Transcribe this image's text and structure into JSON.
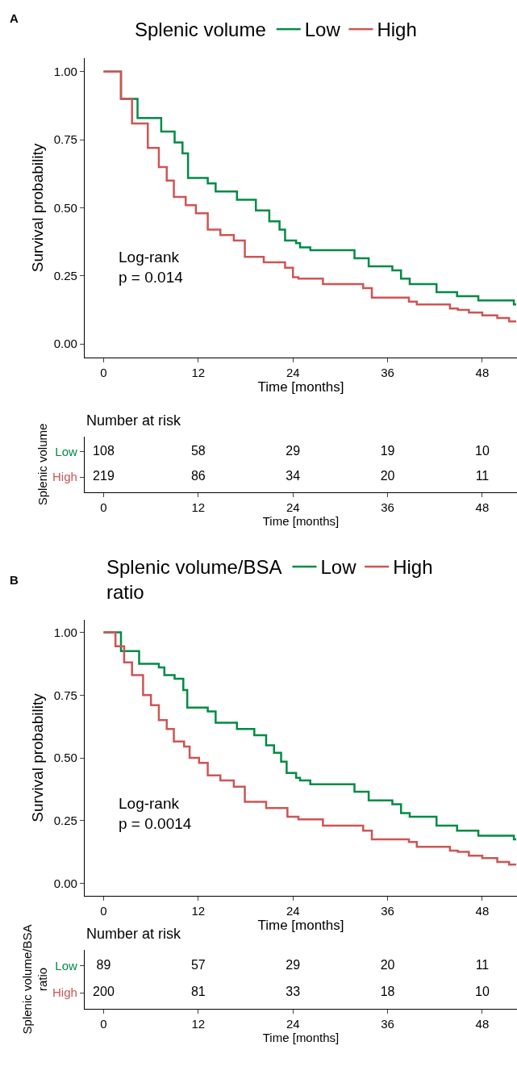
{
  "chart_data": [
    {
      "type": "step",
      "title": "A",
      "xlabel": "Time [months]",
      "ylabel": "Survival probability",
      "legend_title": "Splenic volume",
      "legend": "top",
      "line_style": "solid",
      "xlim": [
        -2.4,
        52.4
      ],
      "xticks": [
        0,
        12,
        24,
        36,
        48
      ],
      "ylim": [
        -0.05,
        1.05
      ],
      "yticks": [
        {
          "value": 0,
          "label": "0.00"
        },
        {
          "value": 0.25,
          "label": "0.25"
        },
        {
          "value": 0.5,
          "label": "0.50"
        },
        {
          "value": 0.75,
          "label": "0.75"
        },
        {
          "value": 1,
          "label": "1.00"
        }
      ],
      "annotations": [
        "Log-rank\np = 0.014"
      ],
      "series": [
        {
          "name": "Low",
          "color": "#008b45",
          "x": [
            0,
            2.2,
            4.3,
            7.3,
            9,
            10,
            10.7,
            13.2,
            14.2,
            16.9,
            19.3,
            21,
            22.3,
            23,
            24.4,
            24.9,
            26.2,
            31.8,
            33.6,
            36.6,
            37.7,
            38.8,
            42.2,
            44.8,
            47.5,
            52,
            52.3
          ],
          "values": [
            1.0,
            0.9,
            0.83,
            0.78,
            0.74,
            0.7,
            0.61,
            0.59,
            0.56,
            0.53,
            0.49,
            0.45,
            0.42,
            0.38,
            0.37,
            0.355,
            0.344,
            0.315,
            0.285,
            0.27,
            0.24,
            0.22,
            0.19,
            0.175,
            0.16,
            0.145,
            0.145
          ]
        },
        {
          "name": "High",
          "color": "#cd5555",
          "x": [
            0,
            2.2,
            3.6,
            5.6,
            7,
            8,
            8.9,
            10.4,
            11.7,
            13.2,
            14.8,
            16.5,
            17.9,
            20.3,
            23,
            24,
            24.7,
            27.8,
            32.9,
            34,
            38.7,
            39.7,
            43.9,
            44.9,
            46.3,
            48,
            49.9,
            51.4,
            52.3
          ],
          "values": [
            1.0,
            0.9,
            0.81,
            0.72,
            0.65,
            0.6,
            0.54,
            0.51,
            0.48,
            0.42,
            0.4,
            0.38,
            0.32,
            0.3,
            0.28,
            0.245,
            0.24,
            0.22,
            0.205,
            0.17,
            0.155,
            0.145,
            0.13,
            0.125,
            0.115,
            0.105,
            0.095,
            0.083,
            0.083
          ]
        }
      ]
    },
    {
      "type": "heatmap",
      "title": "Number at risk",
      "xlabel": "Time [months]",
      "ylabel": "Splenic volume",
      "data_labels": true,
      "xlim": [
        -2.4,
        52.4
      ],
      "xticks": [
        0,
        12,
        24,
        36,
        48
      ],
      "x": [
        0,
        12,
        24,
        36,
        48
      ],
      "y_categories": [
        "Low",
        "High"
      ],
      "colors": [
        "#008b45",
        "#cd5555"
      ],
      "cells": [
        [
          108,
          58,
          29,
          19,
          10
        ],
        [
          219,
          86,
          34,
          20,
          11
        ]
      ]
    },
    {
      "type": "step",
      "title": "B",
      "xlabel": "Time [months]",
      "ylabel": "Survival probability",
      "legend_title": "Splenic volume/BSA ratio",
      "legend": "top",
      "line_style": "solid",
      "xlim": [
        -2.4,
        52.4
      ],
      "xticks": [
        0,
        12,
        24,
        36,
        48
      ],
      "ylim": [
        -0.05,
        1.05
      ],
      "yticks": [
        {
          "value": 0,
          "label": "0.00"
        },
        {
          "value": 0.25,
          "label": "0.25"
        },
        {
          "value": 0.5,
          "label": "0.50"
        },
        {
          "value": 0.75,
          "label": "0.75"
        },
        {
          "value": 1,
          "label": "1.00"
        }
      ],
      "annotations": [
        "Log-rank\np = 0.0014"
      ],
      "series": [
        {
          "name": "Low",
          "color": "#008b45",
          "x": [
            0,
            2.2,
            4.5,
            7,
            7.7,
            9,
            10.1,
            10.6,
            13.2,
            14.2,
            16.9,
            19.1,
            20.6,
            21.6,
            22.5,
            23.2,
            24.4,
            24.9,
            26.2,
            31.8,
            33.6,
            36.6,
            37.7,
            38.8,
            42.2,
            44.8,
            47.5,
            52,
            52.3
          ],
          "values": [
            1.0,
            0.925,
            0.875,
            0.86,
            0.83,
            0.815,
            0.77,
            0.7,
            0.685,
            0.64,
            0.615,
            0.59,
            0.55,
            0.52,
            0.485,
            0.44,
            0.42,
            0.41,
            0.395,
            0.365,
            0.33,
            0.315,
            0.28,
            0.265,
            0.23,
            0.21,
            0.19,
            0.175,
            0.175
          ]
        },
        {
          "name": "High",
          "color": "#cd5555",
          "x": [
            0,
            1.5,
            2.6,
            3.6,
            5,
            6,
            7,
            8,
            8.9,
            10.2,
            10.9,
            12.1,
            13.2,
            14.8,
            16.5,
            17.9,
            20.6,
            23.3,
            24.7,
            27.8,
            32.9,
            34,
            38.7,
            39.7,
            43.9,
            44.9,
            46.3,
            48,
            49.9,
            51.4,
            52.3
          ],
          "values": [
            1.0,
            0.945,
            0.88,
            0.83,
            0.75,
            0.71,
            0.65,
            0.615,
            0.565,
            0.545,
            0.5,
            0.48,
            0.43,
            0.41,
            0.385,
            0.325,
            0.3,
            0.265,
            0.255,
            0.23,
            0.21,
            0.175,
            0.165,
            0.145,
            0.13,
            0.125,
            0.11,
            0.1,
            0.085,
            0.075,
            0.075
          ]
        }
      ]
    },
    {
      "type": "heatmap",
      "title": "Number at risk",
      "xlabel": "Time [months]",
      "ylabel": "Splenic volume/BSA ratio",
      "data_labels": true,
      "xlim": [
        -2.4,
        52.4
      ],
      "xticks": [
        0,
        12,
        24,
        36,
        48
      ],
      "x": [
        0,
        12,
        24,
        36,
        48
      ],
      "y_categories": [
        "Low",
        "High"
      ],
      "colors": [
        "#008b45",
        "#cd5555"
      ],
      "cells": [
        [
          89,
          57,
          29,
          20,
          11
        ],
        [
          200,
          81,
          33,
          18,
          10
        ]
      ]
    }
  ]
}
